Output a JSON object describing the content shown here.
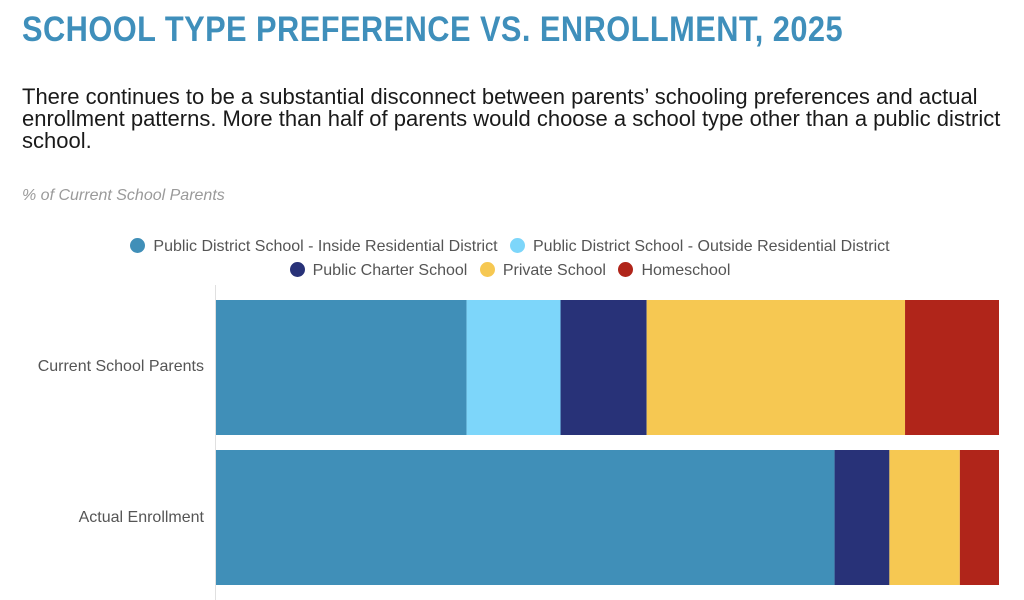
{
  "title": "SCHOOL TYPE PREFERENCE VS. ENROLLMENT, 2025",
  "subtitle": "There continues to be a substantial disconnect between parents’ schooling preferences and actual enrollment patterns. More than half of parents would choose a school type other than a public district school.",
  "unit_label": "% of Current School Parents",
  "chart_data": {
    "type": "bar",
    "orientation": "horizontal",
    "stacked": true,
    "title": "SCHOOL TYPE PREFERENCE VS. ENROLLMENT, 2025",
    "ylabel": "% of Current School Parents",
    "xlim": [
      0,
      100
    ],
    "categories": [
      "Current School Parents",
      "Actual Enrollment"
    ],
    "legend_position": "top-center",
    "series": [
      {
        "name": "Public District School - Inside Residential District",
        "color": "#408fb8",
        "values": [
          32,
          79
        ]
      },
      {
        "name": "Public District School - Outside Residential District",
        "color": "#7dd6fa",
        "values": [
          12,
          0
        ]
      },
      {
        "name": "Public Charter School",
        "color": "#283278",
        "values": [
          11,
          7
        ]
      },
      {
        "name": "Private School",
        "color": "#f6c852",
        "values": [
          33,
          9
        ]
      },
      {
        "name": "Homeschool",
        "color": "#b0251a",
        "values": [
          12,
          5
        ]
      }
    ]
  }
}
